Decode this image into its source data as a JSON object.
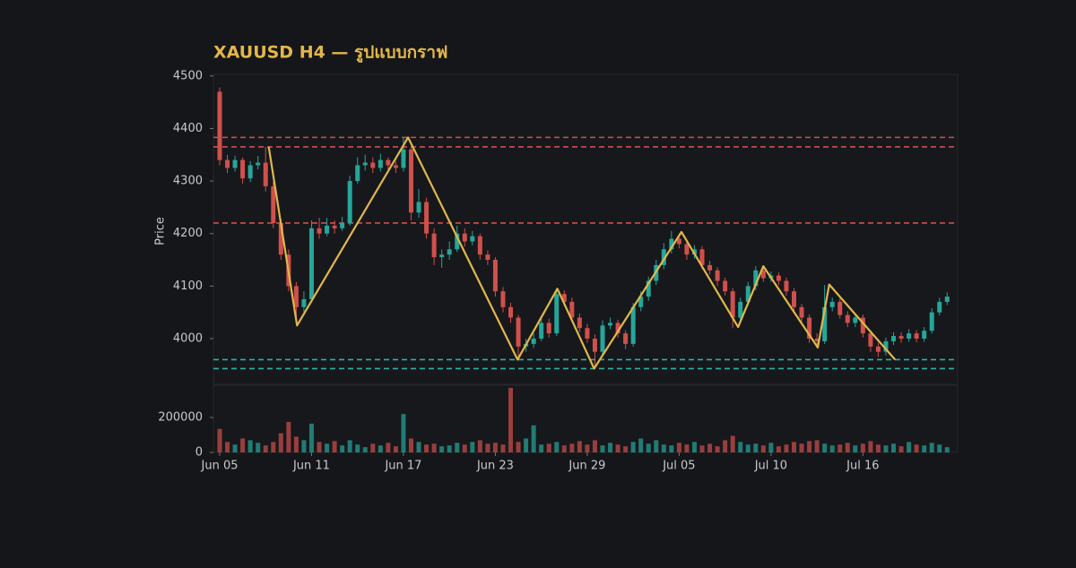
{
  "chart_data": {
    "type": "candlestick",
    "title": "XAUUSD H4 — รูปแบบกราฟ",
    "y_label": "Price",
    "up_color": "#26a69a",
    "down_color": "#d0504c",
    "categories": [
      "Jun 05",
      null,
      null,
      null,
      null,
      null,
      null,
      null,
      null,
      null,
      null,
      null,
      "Jun 11",
      null,
      null,
      null,
      null,
      null,
      null,
      null,
      null,
      null,
      null,
      null,
      "Jun 17",
      null,
      null,
      null,
      null,
      null,
      null,
      null,
      null,
      null,
      null,
      null,
      "Jun 23",
      null,
      null,
      null,
      null,
      null,
      null,
      null,
      null,
      null,
      null,
      null,
      "Jun 29",
      null,
      null,
      null,
      null,
      null,
      null,
      null,
      null,
      null,
      null,
      null,
      "Jul 05",
      null,
      null,
      null,
      null,
      null,
      null,
      null,
      null,
      null,
      null,
      null,
      "Jul 10",
      null,
      null,
      null,
      null,
      null,
      null,
      null,
      null,
      null,
      null,
      null,
      "Jul 16",
      null,
      null,
      null,
      null,
      null,
      null,
      null,
      null,
      null,
      null,
      null
    ],
    "ohlc": [
      [
        4470,
        4478,
        4330,
        4340
      ],
      [
        4340,
        4350,
        4315,
        4325
      ],
      [
        4325,
        4348,
        4318,
        4340
      ],
      [
        4340,
        4345,
        4295,
        4305
      ],
      [
        4305,
        4338,
        4298,
        4330
      ],
      [
        4330,
        4348,
        4322,
        4335
      ],
      [
        4335,
        4365,
        4280,
        4290
      ],
      [
        4290,
        4298,
        4210,
        4220
      ],
      [
        4220,
        4228,
        4150,
        4160
      ],
      [
        4160,
        4170,
        4090,
        4100
      ],
      [
        4100,
        4108,
        4040,
        4060
      ],
      [
        4060,
        4090,
        4050,
        4075
      ],
      [
        4075,
        4225,
        4070,
        4210
      ],
      [
        4210,
        4230,
        4190,
        4200
      ],
      [
        4200,
        4230,
        4195,
        4215
      ],
      [
        4215,
        4225,
        4200,
        4210
      ],
      [
        4210,
        4232,
        4205,
        4220
      ],
      [
        4220,
        4310,
        4215,
        4300
      ],
      [
        4300,
        4345,
        4295,
        4330
      ],
      [
        4330,
        4350,
        4320,
        4335
      ],
      [
        4335,
        4345,
        4315,
        4325
      ],
      [
        4325,
        4352,
        4318,
        4340
      ],
      [
        4340,
        4345,
        4322,
        4330
      ],
      [
        4330,
        4338,
        4315,
        4325
      ],
      [
        4325,
        4383,
        4318,
        4360
      ],
      [
        4360,
        4365,
        4225,
        4240
      ],
      [
        4240,
        4285,
        4230,
        4260
      ],
      [
        4260,
        4268,
        4190,
        4200
      ],
      [
        4200,
        4210,
        4140,
        4155
      ],
      [
        4155,
        4170,
        4135,
        4160
      ],
      [
        4160,
        4185,
        4150,
        4170
      ],
      [
        4170,
        4215,
        4165,
        4200
      ],
      [
        4200,
        4210,
        4175,
        4185
      ],
      [
        4185,
        4205,
        4178,
        4195
      ],
      [
        4195,
        4200,
        4150,
        4160
      ],
      [
        4160,
        4168,
        4140,
        4150
      ],
      [
        4150,
        4155,
        4080,
        4090
      ],
      [
        4090,
        4098,
        4050,
        4060
      ],
      [
        4060,
        4068,
        4030,
        4040
      ],
      [
        4040,
        4045,
        3960,
        3985
      ],
      [
        3985,
        4000,
        3975,
        3990
      ],
      [
        3990,
        4010,
        3982,
        4000
      ],
      [
        4000,
        4040,
        3995,
        4030
      ],
      [
        4030,
        4038,
        4002,
        4010
      ],
      [
        4010,
        4095,
        4005,
        4085
      ],
      [
        4085,
        4092,
        4062,
        4070
      ],
      [
        4070,
        4078,
        4032,
        4040
      ],
      [
        4040,
        4048,
        4012,
        4020
      ],
      [
        4020,
        4028,
        3992,
        4000
      ],
      [
        4000,
        4008,
        3945,
        3975
      ],
      [
        3975,
        4035,
        3968,
        4025
      ],
      [
        4025,
        4040,
        4018,
        4030
      ],
      [
        4030,
        4036,
        4002,
        4010
      ],
      [
        4010,
        4016,
        3980,
        3990
      ],
      [
        3990,
        4068,
        3985,
        4060
      ],
      [
        4060,
        4090,
        4052,
        4080
      ],
      [
        4080,
        4118,
        4072,
        4110
      ],
      [
        4110,
        4150,
        4102,
        4140
      ],
      [
        4140,
        4182,
        4132,
        4170
      ],
      [
        4170,
        4205,
        4162,
        4190
      ],
      [
        4190,
        4200,
        4172,
        4180
      ],
      [
        4180,
        4188,
        4150,
        4160
      ],
      [
        4160,
        4178,
        4152,
        4170
      ],
      [
        4170,
        4176,
        4132,
        4140
      ],
      [
        4140,
        4148,
        4122,
        4130
      ],
      [
        4130,
        4136,
        4100,
        4110
      ],
      [
        4110,
        4116,
        4082,
        4090
      ],
      [
        4090,
        4096,
        4020,
        4040
      ],
      [
        4040,
        4078,
        4032,
        4070
      ],
      [
        4070,
        4108,
        4062,
        4100
      ],
      [
        4100,
        4138,
        4092,
        4130
      ],
      [
        4130,
        4136,
        4108,
        4115
      ],
      [
        4115,
        4128,
        4108,
        4120
      ],
      [
        4120,
        4126,
        4102,
        4110
      ],
      [
        4110,
        4116,
        4082,
        4090
      ],
      [
        4090,
        4096,
        4052,
        4060
      ],
      [
        4060,
        4066,
        4032,
        4040
      ],
      [
        4040,
        4046,
        3992,
        4000
      ],
      [
        4000,
        4010,
        3982,
        3995
      ],
      [
        3995,
        4102,
        3990,
        4060
      ],
      [
        4060,
        4078,
        4052,
        4070
      ],
      [
        4070,
        4076,
        4038,
        4045
      ],
      [
        4045,
        4052,
        4022,
        4030
      ],
      [
        4030,
        4048,
        4022,
        4040
      ],
      [
        4040,
        4046,
        4002,
        4010
      ],
      [
        4010,
        4016,
        3975,
        3985
      ],
      [
        3985,
        3992,
        3965,
        3975
      ],
      [
        3975,
        4002,
        3968,
        3995
      ],
      [
        3995,
        4012,
        3988,
        4005
      ],
      [
        4005,
        4012,
        3992,
        4000
      ],
      [
        4000,
        4018,
        3994,
        4010
      ],
      [
        4010,
        4016,
        3993,
        4000
      ],
      [
        4000,
        4022,
        3994,
        4015
      ],
      [
        4015,
        4058,
        4010,
        4050
      ],
      [
        4050,
        4078,
        4044,
        4070
      ],
      [
        4070,
        4088,
        4064,
        4080
      ]
    ],
    "ylim": [
      3913,
      4503
    ],
    "yticks": [
      4000,
      4100,
      4200,
      4300,
      4400,
      4500
    ],
    "levels": [
      {
        "value": 4383,
        "color": "#d0504c"
      },
      {
        "value": 4365,
        "color": "#d0504c"
      },
      {
        "value": 4220,
        "color": "#d0504c"
      },
      {
        "value": 3960,
        "color": "#2bb3a3"
      },
      {
        "value": 3943,
        "color": "#2bb3a3"
      }
    ],
    "zigzag": {
      "color": "#e0b84a",
      "x": [
        6.4,
        10.1,
        24.6,
        38.9,
        44.1,
        48.9,
        60.3,
        67.7,
        71,
        78.1,
        79.6,
        88.2
      ],
      "y": [
        4365,
        4025,
        4383,
        3960,
        4095,
        3943,
        4203,
        4022,
        4138,
        3983,
        4103,
        3960
      ]
    },
    "volume": {
      "ylim": [
        0,
        385000
      ],
      "yticks": [
        0,
        200000
      ],
      "values": [
        135000,
        60000,
        45000,
        80000,
        70000,
        55000,
        40000,
        60000,
        110000,
        175000,
        90000,
        70000,
        165000,
        60000,
        50000,
        65000,
        40000,
        70000,
        45000,
        30000,
        50000,
        40000,
        55000,
        35000,
        220000,
        80000,
        60000,
        45000,
        50000,
        35000,
        40000,
        55000,
        45000,
        60000,
        70000,
        50000,
        55000,
        45000,
        370000,
        60000,
        80000,
        155000,
        45000,
        50000,
        60000,
        40000,
        50000,
        65000,
        45000,
        70000,
        40000,
        55000,
        45000,
        35000,
        60000,
        80000,
        50000,
        70000,
        45000,
        40000,
        55000,
        45000,
        60000,
        40000,
        50000,
        35000,
        70000,
        95000,
        60000,
        45000,
        50000,
        40000,
        55000,
        35000,
        45000,
        60000,
        50000,
        65000,
        70000,
        50000,
        40000,
        45000,
        55000,
        40000,
        50000,
        65000,
        45000,
        40000,
        50000,
        35000,
        60000,
        45000,
        40000,
        55000,
        45000,
        30000
      ]
    }
  }
}
